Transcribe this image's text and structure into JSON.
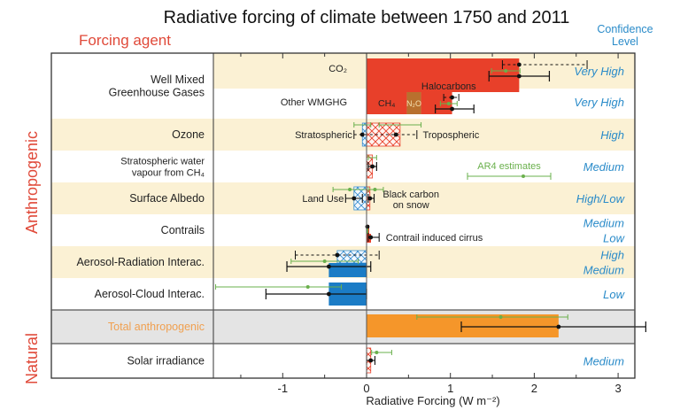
{
  "chart_data": {
    "type": "bar",
    "title": "Radiative forcing of climate between 1750 and 2011",
    "left_header": "Forcing agent",
    "right_header": [
      "Confidence",
      "Level"
    ],
    "xlabel": "Radiative Forcing (W m⁻²)",
    "xlim": [
      -1.9,
      3.2
    ],
    "xticks": [
      -1,
      0,
      1,
      2,
      3
    ],
    "xtick_labels": [
      "-1",
      "0",
      "1",
      "2",
      "3"
    ],
    "group_labels": [
      "Anthropogenic",
      "Natural"
    ],
    "annotation_ar4": "AR4 estimates",
    "colors": {
      "ghg_red": "#e8402a",
      "n2o_brown": "#b8702e",
      "aerosol_blue": "#1b7cc6",
      "total_orange": "#f5962a",
      "band_yellow": "#fbf1d4",
      "band_gray": "#e4e4e4",
      "ar4_green": "#6ab04c",
      "confidence_blue": "#2a8bc9",
      "header_red": "#e04a3a",
      "total_label_orange": "#f0a050"
    },
    "rows": [
      {
        "label": [
          "Well Mixed",
          "Greenhouse Gases"
        ],
        "confidence": [
          "Very High",
          "Very High"
        ],
        "band": "yellow",
        "sub": [
          {
            "name": "CO₂",
            "segments": [
              {
                "from": 0,
                "to": 1.82,
                "fill": "ghg_red"
              }
            ],
            "best": 1.82,
            "range": [
              1.46,
              2.18
            ],
            "ar4": 1.66,
            "ar4_range": [
              1.49,
              1.83
            ],
            "dashed": [
              1.82,
              2.63,
              1.62
            ]
          },
          {
            "name": "Other WMGHG",
            "segments": [
              {
                "from": 0,
                "to": 0.48,
                "fill": "ghg_red",
                "label": "CH₄"
              },
              {
                "from": 0.48,
                "to": 0.65,
                "fill": "n2o_brown",
                "label": "N₂O"
              },
              {
                "from": 0.65,
                "to": 1.02,
                "fill": "ghg_red"
              }
            ],
            "best": 1.02,
            "range": [
              0.82,
              1.28
            ],
            "ar4": 0.98,
            "ar4_range": [
              0.88,
              1.08
            ],
            "annotation": "Halocarbons"
          }
        ]
      },
      {
        "label": [
          "Ozone"
        ],
        "confidence": [
          "High"
        ],
        "band": "yellow",
        "left_annotation": "Stratospheric",
        "right_annotation": "Tropospheric",
        "segments": [
          {
            "from": -0.05,
            "to": 0,
            "fill": "hatch_blue"
          },
          {
            "from": 0,
            "to": 0.4,
            "fill": "hatch_red"
          }
        ],
        "best": 0.35,
        "range": [
          -0.15,
          0.6
        ]
      },
      {
        "label": [
          "Stratospheric water",
          "vapour from CH₄"
        ],
        "confidence": [
          "Medium"
        ],
        "band": "white",
        "segments": [
          {
            "from": 0,
            "to": 0.07,
            "fill": "hatch_red"
          }
        ],
        "best": 0.07,
        "range": [
          0.02,
          0.12
        ],
        "ar4": 0.07,
        "ar4_range": [
          0.02,
          0.12
        ]
      },
      {
        "label": [
          "Surface Albedo"
        ],
        "confidence": [
          "High/Low"
        ],
        "band": "yellow",
        "left_annotation": "Land Use",
        "right_annotation": [
          "Black carbon",
          "on snow"
        ],
        "segments": [
          {
            "from": -0.15,
            "to": 0,
            "fill": "hatch_blue"
          },
          {
            "from": 0,
            "to": 0.04,
            "fill": "hatch_red"
          }
        ],
        "best": -0.15,
        "range": [
          -0.25,
          -0.05
        ],
        "best2": 0.04,
        "range2": [
          0.02,
          0.09
        ],
        "ar4": -0.2,
        "ar4_range": [
          -0.4,
          0.0
        ]
      },
      {
        "label": [
          "Contrails"
        ],
        "confidence": [
          "Medium",
          "Low"
        ],
        "band": "white",
        "right_annotation": "Contrail induced cirrus",
        "segments": [
          {
            "from": 0,
            "to": 0.01,
            "fill": "ghg_red"
          },
          {
            "from": 0,
            "to": 0.05,
            "fill": "ghg_red"
          }
        ],
        "best": 0.05,
        "range": [
          0.02,
          0.15
        ]
      },
      {
        "label": [
          "Aerosol-Radiation Interac."
        ],
        "confidence": [
          "High",
          "Medium"
        ],
        "band": "yellow",
        "segments": [
          {
            "from": -0.35,
            "to": 0,
            "fill": "hatch_blue"
          },
          {
            "from": -0.45,
            "to": 0,
            "fill": "aerosol_blue"
          }
        ],
        "best": -0.45,
        "range": [
          -0.95,
          0.05
        ],
        "dashed": [
          -0.35,
          -0.85,
          0.15
        ],
        "ar4": -0.5,
        "ar4_range": [
          -0.9,
          -0.1
        ]
      },
      {
        "label": [
          "Aerosol-Cloud Interac."
        ],
        "confidence": [
          "Low"
        ],
        "band": "white",
        "segments": [
          {
            "from": -0.45,
            "to": 0,
            "fill": "aerosol_blue"
          }
        ],
        "best": -0.45,
        "range": [
          -1.2,
          0.0
        ],
        "ar4": -0.7,
        "ar4_range": [
          -1.8,
          -0.3
        ]
      },
      {
        "label": [
          "Total anthropogenic"
        ],
        "confidence": [],
        "band": "gray",
        "label_color": "total_label_orange",
        "segments": [
          {
            "from": 0,
            "to": 2.29,
            "fill": "total_orange"
          }
        ],
        "best": 2.29,
        "range": [
          1.13,
          3.33
        ],
        "ar4": 1.6,
        "ar4_range": [
          0.6,
          2.4
        ]
      },
      {
        "label": [
          "Solar irradiance"
        ],
        "confidence": [
          "Medium"
        ],
        "band": "white",
        "segments": [
          {
            "from": 0,
            "to": 0.05,
            "fill": "hatch_red"
          }
        ],
        "best": 0.05,
        "range": [
          0.0,
          0.1
        ],
        "ar4": 0.12,
        "ar4_range": [
          0.06,
          0.3
        ]
      }
    ]
  }
}
